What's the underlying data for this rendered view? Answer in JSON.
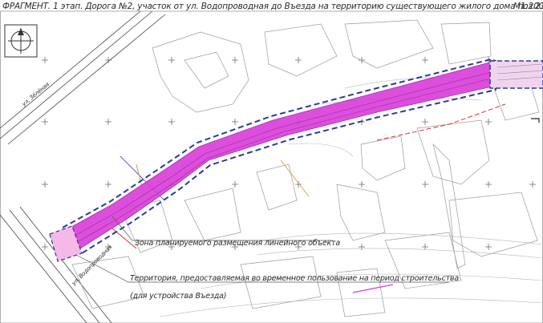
{
  "header": {
    "title": "ФРАГМЕНТ. 1 этап. Дорога №2, участок от ул. Водопроводная до Въезда на территорию существующего жилого дома поз.23",
    "scale": "М1:2000"
  },
  "legend": {
    "linear_object_zone": "Зона планируемого размещения линейного объекта",
    "temporary_territory_line1": "Территория, предоставляемая во временное пользование на период строительства",
    "temporary_territory_line2": "(для устройства Въезда)"
  },
  "streets": {
    "street_top": "ул. Зёлёная",
    "street_bottom": "ул. Водопроводная"
  },
  "icons": {
    "north": "north-arrow-icon"
  },
  "colors": {
    "zone_fill": "#d83cd8",
    "boundary_dash": "#2b3a9a",
    "temporary_fill": "#f5b8e9",
    "red_line": "#e03030",
    "green_line": "#2fa83a"
  }
}
